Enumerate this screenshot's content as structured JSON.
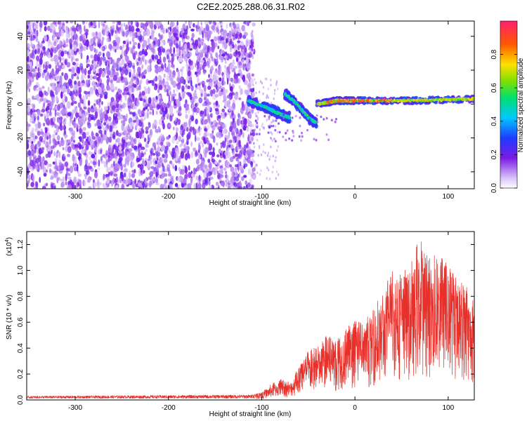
{
  "title": "C2E2.2025.288.06.31.R02",
  "chart_data": [
    {
      "type": "heatmap",
      "name": "spectrogram",
      "xlabel": "Height of straight line (km)",
      "ylabel": "Frequency (Hz)",
      "xlim": [
        -352,
        128
      ],
      "ylim": [
        -50,
        49
      ],
      "xticks": [
        -300,
        -200,
        -100,
        0,
        100
      ],
      "yticks": [
        -40,
        -20,
        0,
        20,
        40
      ],
      "xtick_labels": [
        "-300",
        "-200",
        "-100",
        "0",
        "100"
      ],
      "ytick_labels": [
        "-40",
        "-20",
        "0",
        "20",
        "40"
      ],
      "noise_region": {
        "x_range": [
          -352,
          -112
        ],
        "value": "0.2-0.4"
      },
      "features": [
        {
          "name": "falling branch",
          "points": [
            [
              -115,
              2
            ],
            [
              -95,
              -2
            ],
            [
              -80,
              -6
            ],
            [
              -70,
              -8
            ]
          ]
        },
        {
          "name": "descending track",
          "points": [
            [
              -75,
              6
            ],
            [
              -62,
              0
            ],
            [
              -50,
              -8
            ],
            [
              -42,
              -11
            ]
          ]
        },
        {
          "name": "steady tone",
          "points": [
            [
              -40,
              0
            ],
            [
              -20,
              2
            ],
            [
              0,
              2
            ],
            [
              60,
              2
            ],
            [
              128,
              3
            ]
          ]
        }
      ],
      "colorbar": {
        "label": "Normalized spectral amplitude",
        "ticks": [
          0.0,
          0.2,
          0.4,
          0.6,
          0.8
        ],
        "tick_labels": [
          "0.0",
          "0.2",
          "0.4",
          "0.6",
          "0.8"
        ],
        "range": [
          0,
          1
        ]
      }
    },
    {
      "type": "line",
      "name": "snr",
      "xlabel": "Height of straight line (km)",
      "ylabel": "SNR (10 * v/v)",
      "scale_label": "(x10",
      "scale_exp": "4",
      "scale_close": ")",
      "xlim": [
        -352,
        128
      ],
      "ylim": [
        0,
        1.3
      ],
      "xticks": [
        -300,
        -200,
        -100,
        0,
        100
      ],
      "yticks": [
        0.0,
        0.2,
        0.4,
        0.6,
        0.8,
        1.0,
        1.2
      ],
      "xtick_labels": [
        "-300",
        "-200",
        "-100",
        "0",
        "100"
      ],
      "ytick_labels": [
        "0.0",
        "0.2",
        "0.4",
        "0.6",
        "0.8",
        "1.0",
        "1.2"
      ],
      "color": "#e8302a",
      "envelope": [
        [
          -352,
          0.03
        ],
        [
          -110,
          0.04
        ],
        [
          -100,
          0.06
        ],
        [
          -90,
          0.12
        ],
        [
          -80,
          0.16
        ],
        [
          -70,
          0.14
        ],
        [
          -60,
          0.25
        ],
        [
          -50,
          0.38
        ],
        [
          -40,
          0.42
        ],
        [
          -30,
          0.5
        ],
        [
          -20,
          0.46
        ],
        [
          -10,
          0.58
        ],
        [
          0,
          0.62
        ],
        [
          10,
          0.6
        ],
        [
          20,
          0.72
        ],
        [
          30,
          0.85
        ],
        [
          40,
          1.0
        ],
        [
          50,
          0.98
        ],
        [
          60,
          1.05
        ],
        [
          70,
          1.28
        ],
        [
          80,
          1.1
        ],
        [
          90,
          1.15
        ],
        [
          100,
          1.05
        ],
        [
          110,
          0.95
        ],
        [
          120,
          0.9
        ],
        [
          128,
          0.75
        ]
      ]
    }
  ]
}
